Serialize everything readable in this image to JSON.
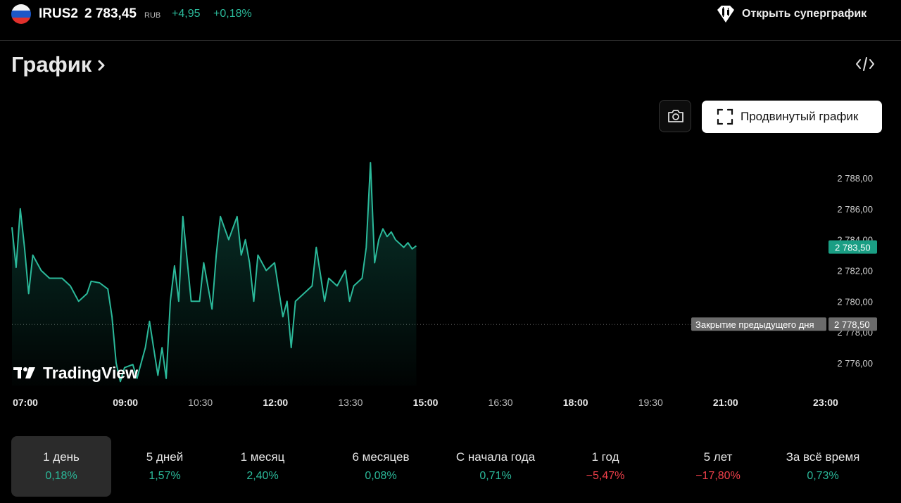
{
  "header": {
    "ticker": "IRUS2",
    "price": "2 783,45",
    "currency": "RUB",
    "change_abs": "+4,95",
    "change_pct": "+0,18%",
    "flag_icon": "russia-flag-icon",
    "supergraph_label": "Открыть суперграфик",
    "supergraph_icon": "candlestick-diamond-icon"
  },
  "section": {
    "title": "График",
    "chevron_icon": "chevron-right-icon",
    "embed_icon": "code-icon"
  },
  "toolbar": {
    "camera_icon": "camera-icon",
    "advanced_label": "Продвинутый график",
    "advanced_icon": "fullscreen-icon"
  },
  "colors": {
    "accent": "#2bb99a",
    "negative": "#f0404a",
    "background": "#000000",
    "prev_close_tag": "#6b6b6b"
  },
  "chart_data": {
    "type": "area",
    "watermark": "TradingView",
    "x_ticks": [
      "07:00",
      "09:00",
      "10:30",
      "12:00",
      "13:30",
      "15:00",
      "16:30",
      "18:00",
      "19:30",
      "21:00",
      "23:00"
    ],
    "x_ticks_bold": [
      "07:00",
      "09:00",
      "12:00",
      "15:00",
      "18:00",
      "21:00",
      "23:00"
    ],
    "x_range": [
      "07:00",
      "24:00"
    ],
    "y_ticks": [
      "2 788,00",
      "2 786,00",
      "2 784,00",
      "2 782,00",
      "2 780,00",
      "2 778,00",
      "2 776,00"
    ],
    "ylim": [
      2775.0,
      2789.5
    ],
    "last_price": 2783.5,
    "last_price_label": "2 783,50",
    "prev_close": 2778.5,
    "prev_close_label": "2 778,50",
    "prev_close_text": "Закрытие предыдущего дня",
    "series": [
      {
        "x": [
          "07:00",
          "07:05",
          "07:10",
          "07:15",
          "07:20",
          "07:25",
          "07:35",
          "07:45",
          "08:00",
          "08:10",
          "08:20",
          "08:30",
          "08:35",
          "08:45",
          "08:55",
          "09:00",
          "09:05",
          "09:10",
          "09:15",
          "09:25",
          "09:30",
          "09:40",
          "09:45",
          "09:55",
          "10:00",
          "10:05",
          "10:10",
          "10:15",
          "10:20",
          "10:25",
          "10:35",
          "10:45",
          "10:50",
          "11:00",
          "11:05",
          "11:10",
          "11:20",
          "11:30",
          "11:35",
          "11:40",
          "11:45",
          "11:50",
          "11:55",
          "12:05",
          "12:15",
          "12:25",
          "12:30",
          "12:35",
          "12:40",
          "12:50",
          "13:00",
          "13:05",
          "13:15",
          "13:20",
          "13:30",
          "13:40",
          "13:45",
          "13:50",
          "14:00",
          "14:05",
          "14:10",
          "14:15",
          "14:20",
          "14:25",
          "14:30",
          "14:35",
          "14:40",
          "14:50",
          "14:55",
          "15:00",
          "15:05"
        ],
        "y": [
          2784.8,
          2782.2,
          2786.0,
          2783.5,
          2780.5,
          2783.0,
          2782.0,
          2781.5,
          2781.5,
          2781.0,
          2780.0,
          2780.5,
          2781.3,
          2781.2,
          2780.8,
          2779.0,
          2776.0,
          2774.8,
          2775.7,
          2775.9,
          2775.0,
          2777.0,
          2778.7,
          2775.2,
          2777.0,
          2775.0,
          2780.0,
          2782.3,
          2780.0,
          2785.5,
          2780.0,
          2780.0,
          2782.5,
          2779.5,
          2783.0,
          2785.5,
          2784.0,
          2785.5,
          2783.0,
          2784.0,
          2782.5,
          2780.0,
          2783.0,
          2782.0,
          2782.5,
          2779.0,
          2780.0,
          2777.0,
          2780.0,
          2780.5,
          2781.0,
          2783.5,
          2780.0,
          2781.5,
          2781.0,
          2782.0,
          2780.0,
          2781.0,
          2781.5,
          2783.5,
          2789.0,
          2782.5,
          2784.0,
          2784.7,
          2784.2,
          2784.5,
          2784.0,
          2783.5,
          2783.8,
          2783.4,
          2783.6
        ]
      }
    ]
  },
  "periods": [
    {
      "label": "1 день",
      "value": "0,18%",
      "positive": true,
      "active": true
    },
    {
      "label": "5 дней",
      "value": "1,57%",
      "positive": true,
      "active": false
    },
    {
      "label": "1 месяц",
      "value": "2,40%",
      "positive": true,
      "active": false
    },
    {
      "label": "6 месяцев",
      "value": "0,08%",
      "positive": true,
      "active": false
    },
    {
      "label": "С начала года",
      "value": "0,71%",
      "positive": true,
      "active": false
    },
    {
      "label": "1 год",
      "value": "−5,47%",
      "positive": false,
      "active": false
    },
    {
      "label": "5 лет",
      "value": "−17,80%",
      "positive": false,
      "active": false
    },
    {
      "label": "За всё время",
      "value": "0,73%",
      "positive": true,
      "active": false
    }
  ]
}
